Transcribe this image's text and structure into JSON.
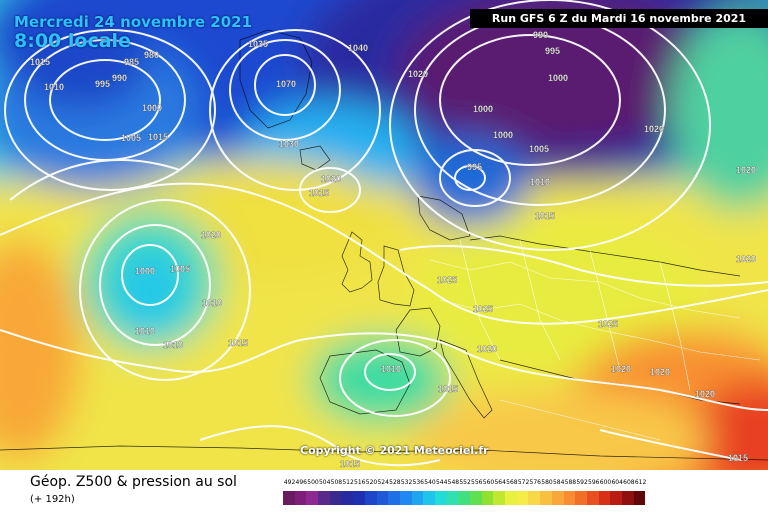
{
  "header": {
    "date_line": "Mercredi 24 novembre 2021",
    "time_line": "8:00 locale",
    "run_label": "Run GFS 6 Z du Mardi 16 novembre 2021"
  },
  "footer": {
    "title": "Géop. Z500 & pression au sol",
    "subtitle": "(+ 192h)",
    "copyright": "Copyright © 2021 Meteociel.fr"
  },
  "legend": {
    "values": [
      "492",
      "496",
      "500",
      "504",
      "508",
      "512",
      "516",
      "520",
      "524",
      "528",
      "532",
      "536",
      "540",
      "544",
      "548",
      "552",
      "556",
      "560",
      "564",
      "568",
      "572",
      "576",
      "580",
      "584",
      "588",
      "592",
      "596",
      "600",
      "604",
      "608",
      "612"
    ],
    "colors": [
      "#6a1a60",
      "#7d1f78",
      "#8e2892",
      "#5a2a8a",
      "#3a2a90",
      "#2a2aa0",
      "#1e30b0",
      "#1e46c8",
      "#1e5ad8",
      "#1e70e6",
      "#1e8af0",
      "#1ea6f0",
      "#1ec4ec",
      "#22dcd8",
      "#30e0b0",
      "#40e080",
      "#60e050",
      "#90e030",
      "#c0e830",
      "#e8f040",
      "#f6ec48",
      "#f8d848",
      "#f8c040",
      "#f8a838",
      "#f88c30",
      "#f07028",
      "#e85020",
      "#d83018",
      "#b81c14",
      "#901010",
      "#600808"
    ]
  },
  "pressure_labels": [
    "1015",
    "980",
    "985",
    "990",
    "995",
    "1000",
    "1005",
    "1010",
    "1015",
    "1035",
    "1040",
    "1020",
    "1070",
    "1030",
    "1020",
    "1015",
    "990",
    "995",
    "1000",
    "1000",
    "1000",
    "995",
    "1005",
    "1010",
    "1015",
    "1025",
    "1020",
    "1020",
    "1020",
    "1000",
    "1005",
    "1010",
    "1010",
    "1010",
    "1015",
    "1025",
    "1025",
    "1020",
    "1010",
    "1015",
    "1020",
    "1020",
    "1020",
    "1020",
    "1015",
    "1015"
  ]
}
